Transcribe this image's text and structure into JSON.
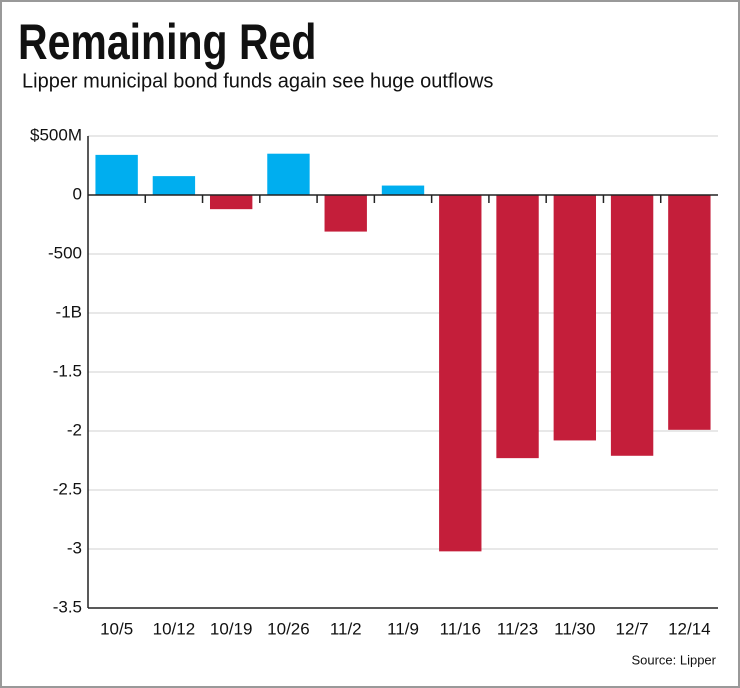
{
  "chart_data": {
    "type": "bar",
    "title": "Remaining Red",
    "subtitle": "Lipper municipal bond funds again see huge outflows",
    "source": "Source: Lipper",
    "categories": [
      "10/5",
      "10/12",
      "10/19",
      "10/26",
      "11/2",
      "11/9",
      "11/16",
      "11/23",
      "11/30",
      "12/7",
      "12/14"
    ],
    "values": [
      340,
      160,
      -120,
      350,
      -310,
      80,
      -3020,
      -2230,
      -2080,
      -2210,
      -1990
    ],
    "colors": [
      "#00aeef",
      "#00aeef",
      "#c41e3a",
      "#00aeef",
      "#c41e3a",
      "#00aeef",
      "#c41e3a",
      "#c41e3a",
      "#c41e3a",
      "#c41e3a",
      "#c41e3a"
    ],
    "ylim": [
      -3500,
      500
    ],
    "yticks": [
      {
        "value": 500,
        "label": "$500M"
      },
      0,
      -500,
      {
        "value": -1000,
        "label": "-1B"
      },
      {
        "value": -1500,
        "label": "-1.5"
      },
      {
        "value": -2000,
        "label": "-2"
      },
      {
        "value": -2500,
        "label": "-2.5"
      },
      {
        "value": -3000,
        "label": "-3"
      },
      {
        "value": -3500,
        "label": "-3.5"
      }
    ],
    "grid": true
  }
}
